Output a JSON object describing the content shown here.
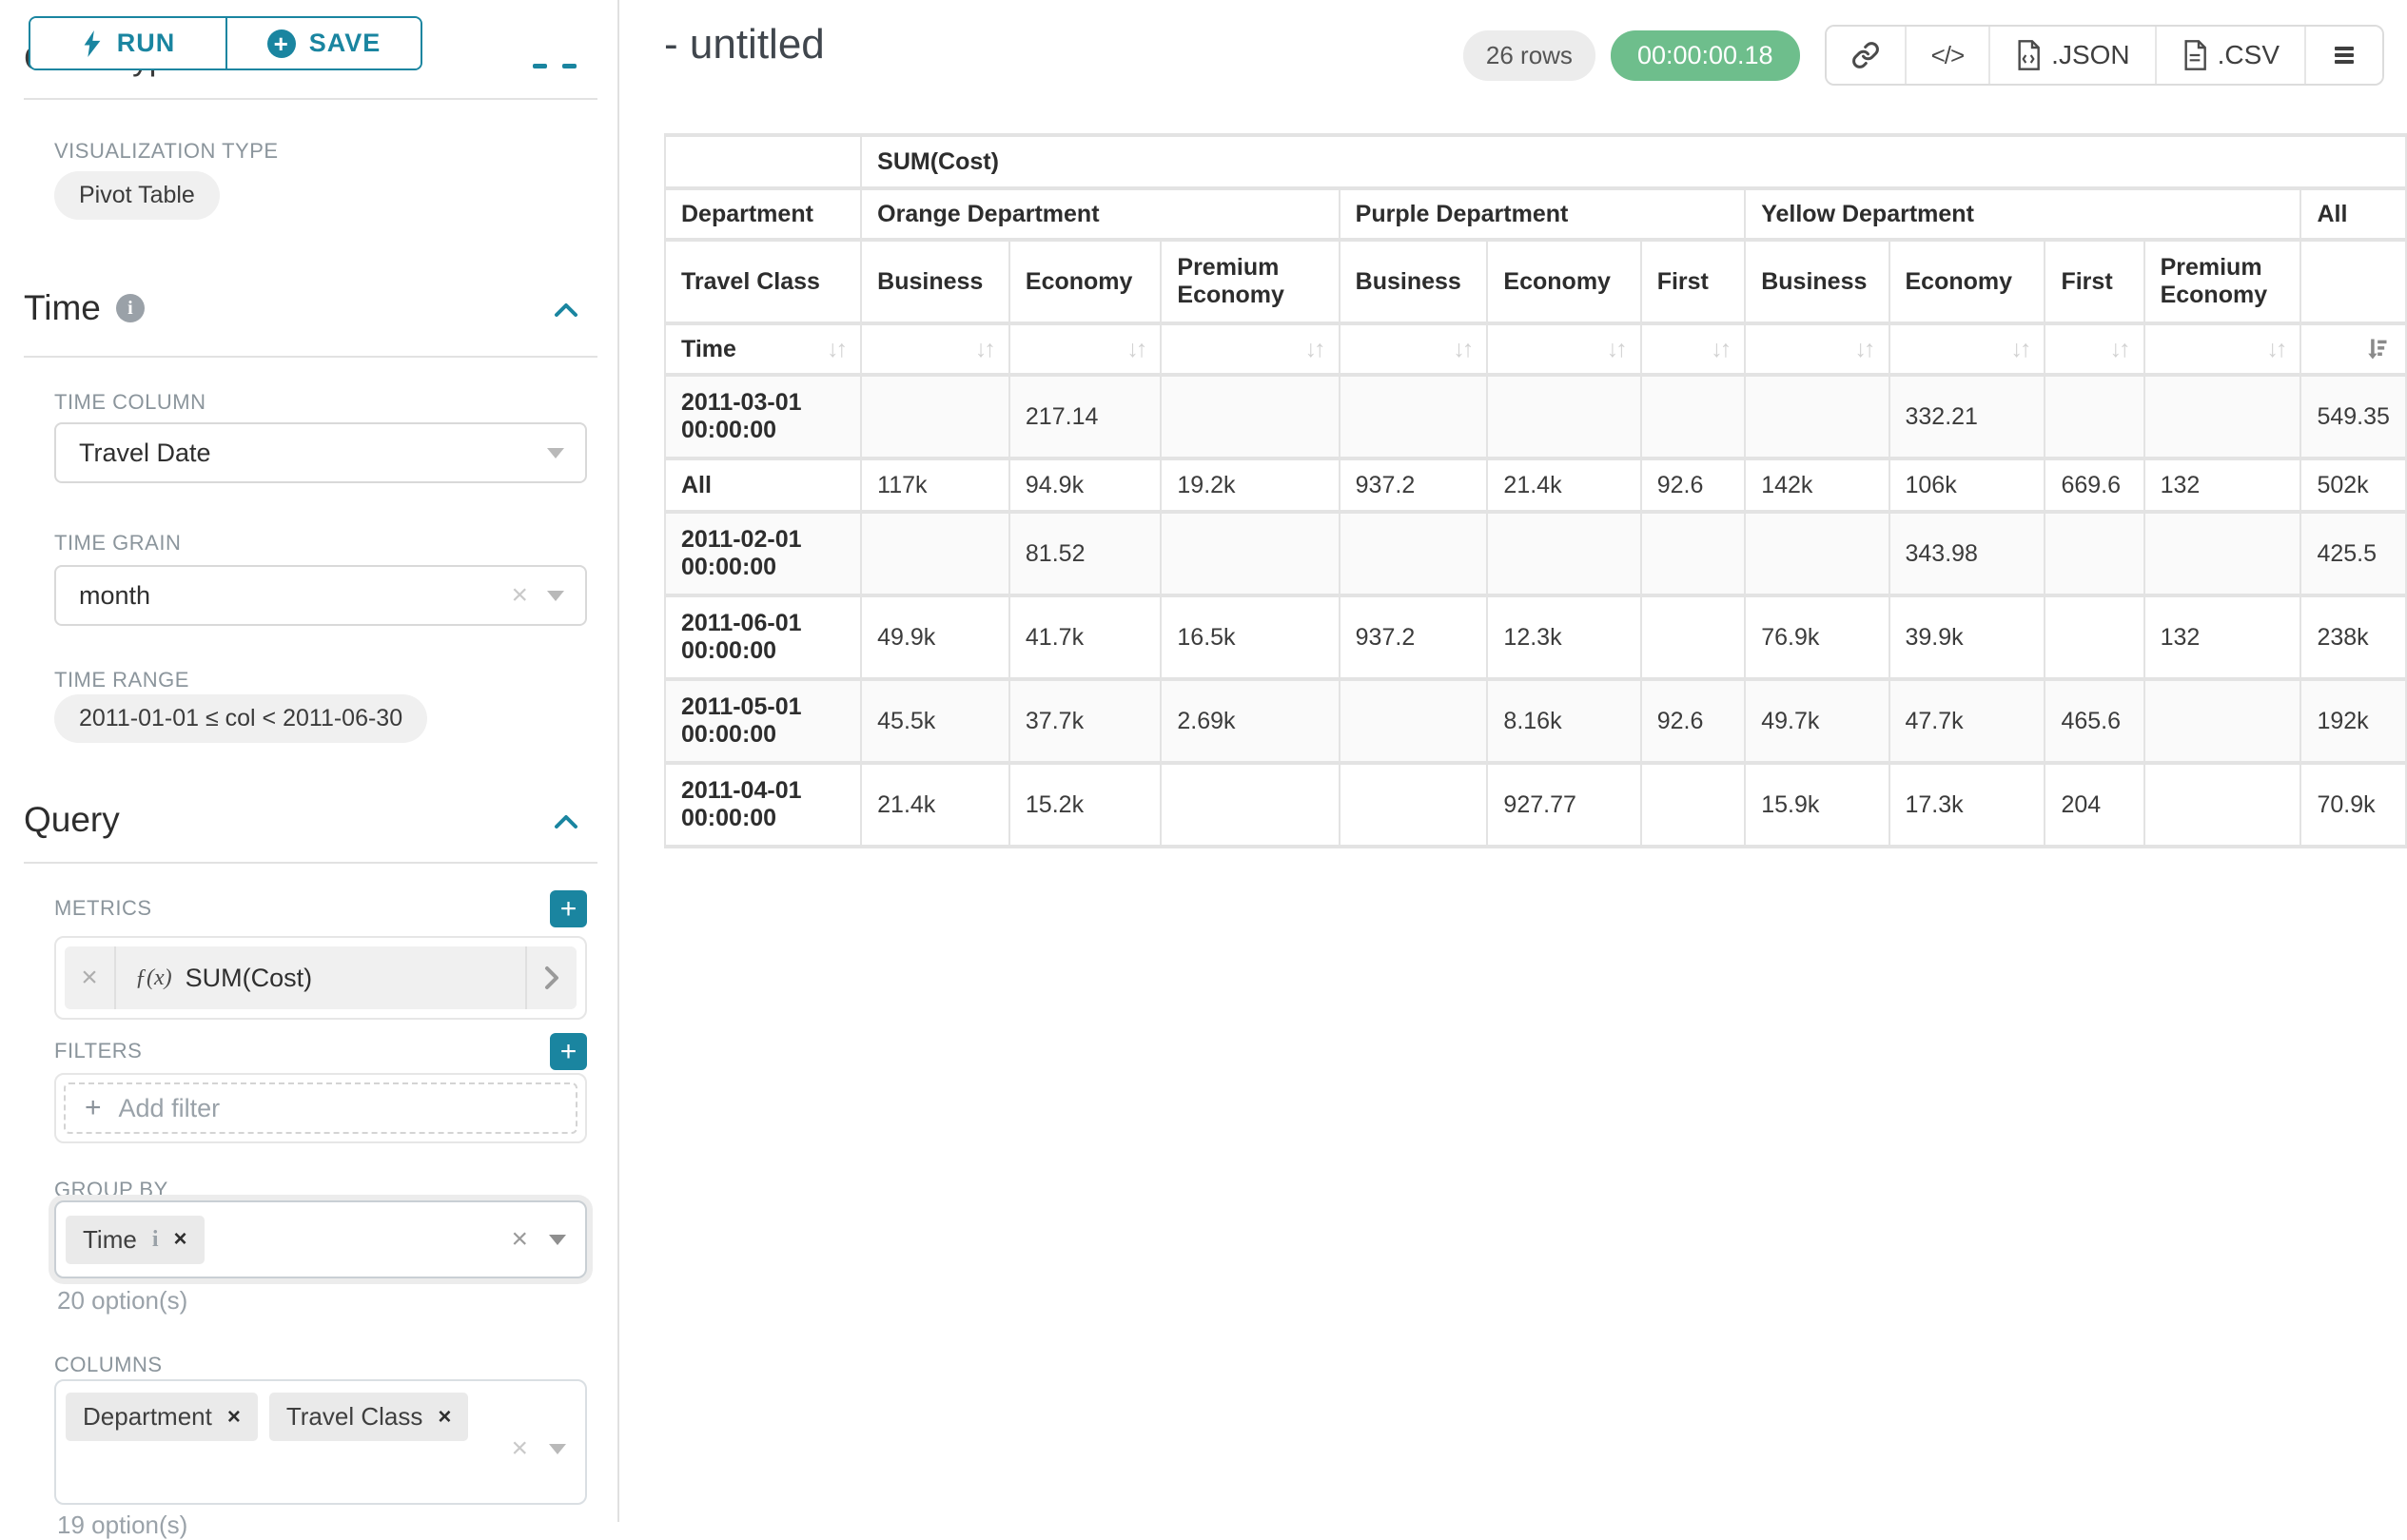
{
  "colors": {
    "accent": "#1a85a0",
    "green": "#6ebe8c"
  },
  "icons": {
    "sort_neutral": "↓↑",
    "code_glyph": "</>",
    "plus": "+",
    "clear_x": "×",
    "remove_x": "×",
    "info_i": "i",
    "fx_prefix": "ƒ(x)"
  },
  "sidebar": {
    "run_label": "RUN",
    "save_label": "SAVE",
    "chart_type_heading": "Chart Type",
    "visualization_type": {
      "label": "VISUALIZATION TYPE",
      "value": "Pivot Table"
    },
    "time_section": {
      "title": "Time",
      "time_column": {
        "label": "TIME COLUMN",
        "value": "Travel Date"
      },
      "time_grain": {
        "label": "TIME GRAIN",
        "value": "month"
      },
      "time_range": {
        "label": "TIME RANGE",
        "value": "2011-01-01 ≤ col < 2011-06-30"
      }
    },
    "query_section": {
      "title": "Query",
      "metrics": {
        "label": "METRICS",
        "items": [
          {
            "prefix": "ƒ(x)",
            "name": "SUM(Cost)"
          }
        ]
      },
      "filters": {
        "label": "FILTERS",
        "add_label": "Add filter"
      },
      "group_by": {
        "label": "GROUP BY",
        "tags": [
          "Time"
        ],
        "options_hint": "20 option(s)"
      },
      "columns": {
        "label": "COLUMNS",
        "tags": [
          "Department",
          "Travel Class"
        ],
        "options_hint": "19 option(s)"
      }
    }
  },
  "header": {
    "title": "- untitled",
    "row_count": "26 rows",
    "timer": "00:00:00.18",
    "export_json": ".JSON",
    "export_csv": ".CSV"
  },
  "pivot_table": {
    "metric_header": "SUM(Cost)",
    "corner_labels": {
      "department": "Department",
      "travel_class": "Travel Class",
      "time": "Time"
    },
    "col_groups": [
      {
        "label": "Orange Department",
        "cols": [
          "Business",
          "Economy",
          "Premium Economy"
        ]
      },
      {
        "label": "Purple Department",
        "cols": [
          "Business",
          "Economy",
          "First"
        ]
      },
      {
        "label": "Yellow Department",
        "cols": [
          "Business",
          "Economy",
          "First",
          "Premium Economy"
        ]
      },
      {
        "label": "All",
        "cols": [
          ""
        ]
      }
    ],
    "rows": [
      {
        "label": "2011-03-01 00:00:00",
        "values": [
          "",
          "217.14",
          "",
          "",
          "",
          "",
          "",
          "332.21",
          "",
          "",
          "549.35"
        ]
      },
      {
        "label": "All",
        "values": [
          "117k",
          "94.9k",
          "19.2k",
          "937.2",
          "21.4k",
          "92.6",
          "142k",
          "106k",
          "669.6",
          "132",
          "502k"
        ]
      },
      {
        "label": "2011-02-01 00:00:00",
        "values": [
          "",
          "81.52",
          "",
          "",
          "",
          "",
          "",
          "343.98",
          "",
          "",
          "425.5"
        ]
      },
      {
        "label": "2011-06-01 00:00:00",
        "values": [
          "49.9k",
          "41.7k",
          "16.5k",
          "937.2",
          "12.3k",
          "",
          "76.9k",
          "39.9k",
          "",
          "132",
          "238k"
        ]
      },
      {
        "label": "2011-05-01 00:00:00",
        "values": [
          "45.5k",
          "37.7k",
          "2.69k",
          "",
          "8.16k",
          "92.6",
          "49.7k",
          "47.7k",
          "465.6",
          "",
          "192k"
        ]
      },
      {
        "label": "2011-04-01 00:00:00",
        "values": [
          "21.4k",
          "15.2k",
          "",
          "",
          "927.77",
          "",
          "15.9k",
          "17.3k",
          "204",
          "",
          "70.9k"
        ]
      }
    ]
  }
}
